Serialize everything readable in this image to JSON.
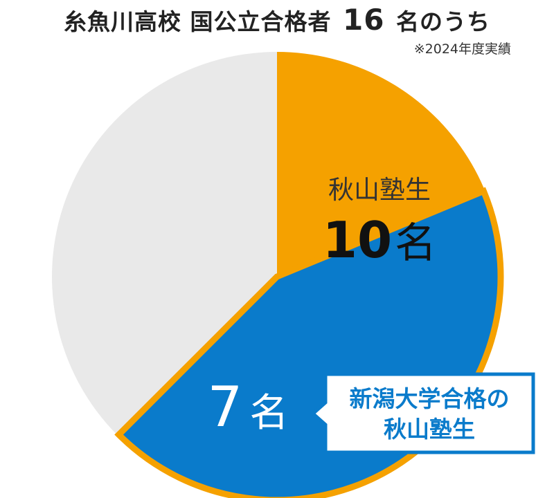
{
  "header": {
    "title_prefix": "糸魚川高校 国公立合格者",
    "title_number": "16",
    "title_suffix": "名のうち",
    "note": "※2024年度実績"
  },
  "chart_data": {
    "type": "pie",
    "total": 16,
    "slices": [
      {
        "key": "akiyama",
        "label": "秋山塾生",
        "value": 10,
        "value_label": "10名",
        "color": "#F5A100"
      },
      {
        "key": "other",
        "label": "",
        "value": 6,
        "color": "#E9E9E9"
      }
    ],
    "subset": {
      "key": "niigata",
      "value": 7,
      "value_label": "7名",
      "color": "#0A7BCB",
      "callout_lines": [
        "新潟大学合格の",
        "秋山塾生"
      ],
      "callout_border_color": "#0A7BCB"
    }
  }
}
